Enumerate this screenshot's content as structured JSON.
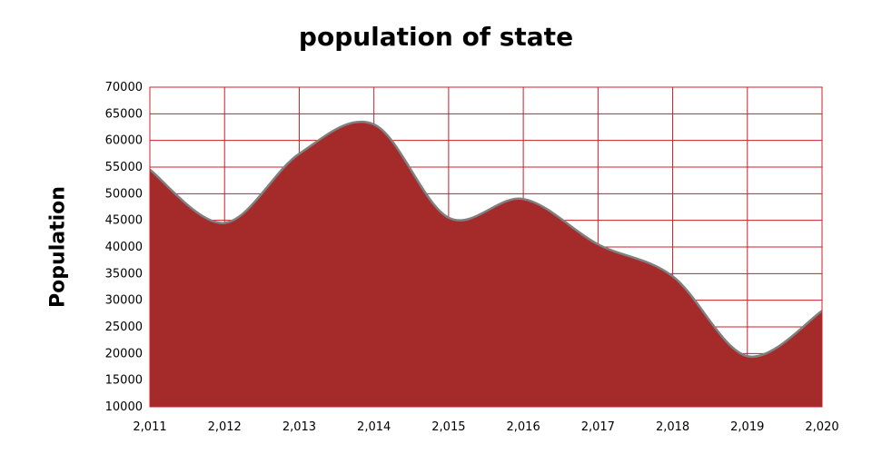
{
  "chart_data": {
    "type": "area",
    "title": "population of state",
    "xlabel": "",
    "ylabel": "Population",
    "x_tick_labels": [
      "2,011",
      "2,012",
      "2,013",
      "2,014",
      "2,015",
      "2,016",
      "2,017",
      "2,018",
      "2,019",
      "2,020"
    ],
    "y_tick_labels": [
      "10000",
      "15000",
      "20000",
      "25000",
      "30000",
      "35000",
      "40000",
      "45000",
      "50000",
      "55000",
      "60000",
      "65000",
      "70000"
    ],
    "xlim": [
      2011,
      2020
    ],
    "ylim": [
      10000,
      70000
    ],
    "grid": true,
    "series": [
      {
        "x": [
          2011,
          2012,
          2013,
          2014,
          2015,
          2016,
          2017,
          2018,
          2019,
          2020
        ],
        "values": [
          54500,
          44500,
          57500,
          63000,
          45500,
          49000,
          40500,
          34500,
          19500,
          28000
        ]
      }
    ],
    "colors": {
      "fill": "#a52a2a",
      "line": "#808080",
      "grid": "#c8202a",
      "background": "#ffffff"
    }
  }
}
